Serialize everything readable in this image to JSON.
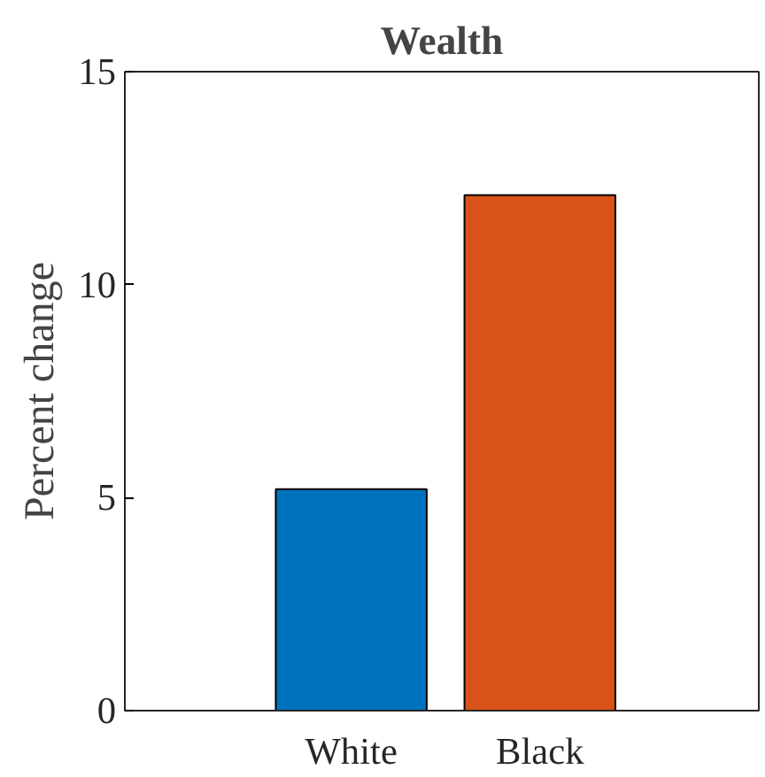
{
  "chart_data": {
    "type": "bar",
    "title": "Wealth",
    "ylabel": "Percent change",
    "categories": [
      "White",
      "Black"
    ],
    "values": [
      5.2,
      12.1
    ],
    "colors": [
      "#0072bd",
      "#d95319"
    ],
    "ylim": [
      0,
      15
    ],
    "yticks": [
      0,
      5,
      10,
      15
    ],
    "grid": false
  }
}
